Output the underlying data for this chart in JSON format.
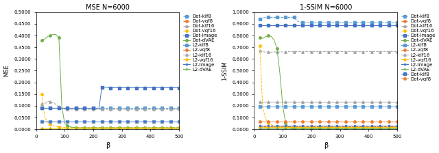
{
  "title1": "MSE N=6000",
  "title2": "1-SSIM N=6000",
  "xlabel": "β",
  "ylabel1": "MSE",
  "ylabel2": "1-SSIM",
  "beta": [
    20,
    30,
    40,
    50,
    60,
    70,
    80,
    90,
    100,
    110,
    120,
    130,
    140,
    150,
    160,
    170,
    180,
    190,
    200,
    210,
    220,
    230,
    240,
    250,
    260,
    270,
    280,
    290,
    300,
    310,
    320,
    330,
    340,
    350,
    360,
    370,
    380,
    390,
    400,
    410,
    420,
    430,
    440,
    450,
    460,
    470,
    480,
    490,
    500
  ],
  "mse": {
    "Dot-klf8": [
      0.09,
      0.09,
      0.09,
      0.09,
      0.09,
      0.09,
      0.09,
      0.09,
      0.09,
      0.09,
      0.09,
      0.09,
      0.09,
      0.09,
      0.09,
      0.09,
      0.09,
      0.09,
      0.09,
      0.09,
      0.09,
      0.09,
      0.09,
      0.09,
      0.09,
      0.09,
      0.09,
      0.09,
      0.09,
      0.09,
      0.09,
      0.09,
      0.09,
      0.09,
      0.09,
      0.09,
      0.09,
      0.09,
      0.09,
      0.09,
      0.09,
      0.09,
      0.09,
      0.09,
      0.09,
      0.09,
      0.09,
      0.09,
      0.09
    ],
    "Dot-vqf8": [
      0.0005,
      0.0005,
      0.0005,
      0.0005,
      0.0005,
      0.0005,
      0.0005,
      0.0005,
      0.0005,
      0.0005,
      0.0005,
      0.0005,
      0.0005,
      0.0005,
      0.0005,
      0.0005,
      0.0005,
      0.0005,
      0.0005,
      0.0005,
      0.0005,
      0.0005,
      0.0005,
      0.0005,
      0.0005,
      0.0005,
      0.0005,
      0.0005,
      0.0005,
      0.0005,
      0.0005,
      0.0005,
      0.0005,
      0.0005,
      0.0005,
      0.0005,
      0.0005,
      0.0005,
      0.0005,
      0.0005,
      0.0005,
      0.0005,
      0.0005,
      0.0005,
      0.0005,
      0.0005,
      0.0005,
      0.0005,
      0.0005
    ],
    "Dot-klf16": [
      0.11,
      0.108,
      0.12,
      0.118,
      0.113,
      0.106,
      0.097,
      0.09,
      0.086,
      0.085,
      0.085,
      0.085,
      0.085,
      0.085,
      0.085,
      0.085,
      0.085,
      0.085,
      0.085,
      0.085,
      0.085,
      0.085,
      0.085,
      0.085,
      0.085,
      0.085,
      0.085,
      0.085,
      0.085,
      0.085,
      0.085,
      0.085,
      0.085,
      0.085,
      0.085,
      0.085,
      0.085,
      0.085,
      0.085,
      0.085,
      0.085,
      0.085,
      0.085,
      0.085,
      0.085,
      0.085,
      0.085,
      0.085,
      0.085
    ],
    "Dot-vqf16": [
      0.15,
      0.055,
      0.03,
      0.02,
      0.015,
      0.012,
      0.01,
      0.009,
      0.008,
      0.008,
      0.008,
      0.008,
      0.008,
      0.008,
      0.008,
      0.008,
      0.008,
      0.008,
      0.008,
      0.008,
      0.008,
      0.008,
      0.008,
      0.008,
      0.008,
      0.008,
      0.008,
      0.008,
      0.008,
      0.008,
      0.008,
      0.008,
      0.008,
      0.008,
      0.008,
      0.008,
      0.008,
      0.008,
      0.008,
      0.008,
      0.008,
      0.008,
      0.008,
      0.008,
      0.008,
      0.008,
      0.008,
      0.008,
      0.008
    ],
    "Dot-Image": [
      0.09,
      0.09,
      0.09,
      0.09,
      0.09,
      0.09,
      0.09,
      0.09,
      0.09,
      0.09,
      0.09,
      0.09,
      0.09,
      0.09,
      0.09,
      0.09,
      0.09,
      0.09,
      0.09,
      0.09,
      0.09,
      0.18,
      0.18,
      0.178,
      0.177,
      0.177,
      0.177,
      0.177,
      0.177,
      0.177,
      0.177,
      0.177,
      0.177,
      0.177,
      0.177,
      0.177,
      0.177,
      0.177,
      0.177,
      0.177,
      0.177,
      0.177,
      0.177,
      0.177,
      0.177,
      0.177,
      0.177,
      0.177,
      0.177
    ],
    "Dot-dVAE": [
      0.38,
      0.385,
      0.395,
      0.4,
      0.405,
      0.404,
      0.39,
      0.1,
      0.025,
      0.015,
      0.01,
      0.008,
      0.007,
      0.006,
      0.006,
      0.006,
      0.006,
      0.006,
      0.006,
      0.006,
      0.006,
      0.006,
      0.006,
      0.006,
      0.006,
      0.006,
      0.006,
      0.006,
      0.006,
      0.006,
      0.006,
      0.006,
      0.006,
      0.006,
      0.006,
      0.006,
      0.006,
      0.006,
      0.006,
      0.006,
      0.006,
      0.006,
      0.006,
      0.006,
      0.006,
      0.006,
      0.006,
      0.006,
      0.006
    ],
    "L2-klf8": [
      0.033,
      0.033,
      0.033,
      0.033,
      0.033,
      0.033,
      0.033,
      0.033,
      0.033,
      0.033,
      0.033,
      0.033,
      0.033,
      0.033,
      0.033,
      0.033,
      0.033,
      0.033,
      0.033,
      0.033,
      0.033,
      0.033,
      0.033,
      0.033,
      0.033,
      0.033,
      0.033,
      0.033,
      0.033,
      0.033,
      0.033,
      0.033,
      0.033,
      0.033,
      0.033,
      0.033,
      0.033,
      0.033,
      0.033,
      0.033,
      0.033,
      0.033,
      0.033,
      0.033,
      0.033,
      0.033,
      0.033,
      0.033,
      0.033
    ],
    "L2-vqf8": [
      0.0005,
      0.0005,
      0.0005,
      0.0005,
      0.0005,
      0.0005,
      0.0005,
      0.0005,
      0.0005,
      0.0005,
      0.0005,
      0.0005,
      0.0005,
      0.0005,
      0.0005,
      0.0005,
      0.0005,
      0.0005,
      0.0005,
      0.0005,
      0.0005,
      0.0005,
      0.0005,
      0.0005,
      0.0005,
      0.0005,
      0.0005,
      0.0005,
      0.0005,
      0.0005,
      0.0005,
      0.0005,
      0.0005,
      0.0005,
      0.0005,
      0.0005,
      0.0005,
      0.0005,
      0.0005,
      0.0005,
      0.0005,
      0.0005,
      0.0005,
      0.0005,
      0.0005,
      0.0005,
      0.0005,
      0.0005,
      0.0005
    ],
    "L2-klf16": [
      0.033,
      0.033,
      0.033,
      0.033,
      0.033,
      0.033,
      0.033,
      0.033,
      0.033,
      0.033,
      0.033,
      0.033,
      0.033,
      0.033,
      0.033,
      0.033,
      0.033,
      0.033,
      0.033,
      0.033,
      0.033,
      0.033,
      0.033,
      0.033,
      0.033,
      0.033,
      0.033,
      0.033,
      0.033,
      0.033,
      0.033,
      0.033,
      0.033,
      0.033,
      0.033,
      0.033,
      0.033,
      0.033,
      0.033,
      0.033,
      0.033,
      0.033,
      0.033,
      0.033,
      0.033,
      0.033,
      0.033,
      0.033,
      0.033
    ],
    "L2-vqf16": [
      0.004,
      0.004,
      0.004,
      0.004,
      0.004,
      0.004,
      0.004,
      0.004,
      0.004,
      0.004,
      0.004,
      0.004,
      0.004,
      0.004,
      0.004,
      0.004,
      0.004,
      0.004,
      0.004,
      0.004,
      0.004,
      0.004,
      0.004,
      0.004,
      0.004,
      0.004,
      0.004,
      0.004,
      0.004,
      0.004,
      0.004,
      0.004,
      0.004,
      0.004,
      0.004,
      0.004,
      0.004,
      0.004,
      0.004,
      0.004,
      0.004,
      0.004,
      0.004,
      0.004,
      0.004,
      0.004,
      0.004,
      0.004,
      0.004
    ],
    "L2-Image": [
      0.033,
      0.033,
      0.033,
      0.033,
      0.033,
      0.033,
      0.033,
      0.033,
      0.033,
      0.033,
      0.033,
      0.033,
      0.033,
      0.033,
      0.033,
      0.033,
      0.033,
      0.033,
      0.033,
      0.033,
      0.033,
      0.033,
      0.033,
      0.033,
      0.033,
      0.033,
      0.033,
      0.033,
      0.033,
      0.033,
      0.033,
      0.033,
      0.033,
      0.033,
      0.033,
      0.033,
      0.033,
      0.033,
      0.033,
      0.033,
      0.033,
      0.033,
      0.033,
      0.033,
      0.033,
      0.033,
      0.033,
      0.033,
      0.033
    ],
    "L2-dVAE": [
      0.002,
      0.002,
      0.002,
      0.002,
      0.002,
      0.002,
      0.002,
      0.002,
      0.002,
      0.002,
      0.002,
      0.002,
      0.002,
      0.002,
      0.002,
      0.002,
      0.002,
      0.002,
      0.002,
      0.002,
      0.002,
      0.002,
      0.002,
      0.002,
      0.002,
      0.002,
      0.002,
      0.002,
      0.002,
      0.002,
      0.002,
      0.002,
      0.002,
      0.002,
      0.002,
      0.002,
      0.002,
      0.002,
      0.002,
      0.002,
      0.002,
      0.002,
      0.002,
      0.002,
      0.002,
      0.002,
      0.002,
      0.002,
      0.002
    ]
  },
  "ssim": {
    "Dot-klf8": [
      0.94,
      0.95,
      0.955,
      0.955,
      0.955,
      0.955,
      0.955,
      0.955,
      0.955,
      0.955,
      0.955,
      0.955,
      0.955,
      0.925,
      0.915,
      0.91,
      0.91,
      0.91,
      0.91,
      0.91,
      0.91,
      0.91,
      0.91,
      0.91,
      0.91,
      0.91,
      0.91,
      0.91,
      0.91,
      0.91,
      0.91,
      0.91,
      0.91,
      0.91,
      0.91,
      0.91,
      0.91,
      0.91,
      0.91,
      0.91,
      0.91,
      0.91,
      0.91,
      0.91,
      0.91,
      0.91,
      0.91,
      0.91,
      0.91
    ],
    "Dot-vqf8": [
      0.022,
      0.022,
      0.022,
      0.022,
      0.022,
      0.022,
      0.022,
      0.022,
      0.022,
      0.022,
      0.022,
      0.022,
      0.022,
      0.022,
      0.022,
      0.022,
      0.022,
      0.022,
      0.022,
      0.022,
      0.022,
      0.022,
      0.022,
      0.022,
      0.022,
      0.022,
      0.022,
      0.022,
      0.022,
      0.022,
      0.022,
      0.022,
      0.022,
      0.022,
      0.022,
      0.022,
      0.022,
      0.022,
      0.022,
      0.022,
      0.022,
      0.022,
      0.022,
      0.022,
      0.022,
      0.022,
      0.022,
      0.022,
      0.022
    ],
    "Dot-klf16": [
      0.672,
      0.662,
      0.66,
      0.66,
      0.658,
      0.66,
      0.66,
      0.66,
      0.66,
      0.66,
      0.663,
      0.663,
      0.663,
      0.663,
      0.663,
      0.663,
      0.663,
      0.663,
      0.663,
      0.663,
      0.663,
      0.663,
      0.663,
      0.663,
      0.663,
      0.663,
      0.663,
      0.663,
      0.663,
      0.663,
      0.663,
      0.663,
      0.663,
      0.663,
      0.663,
      0.663,
      0.663,
      0.663,
      0.663,
      0.663,
      0.663,
      0.663,
      0.663,
      0.663,
      0.663,
      0.663,
      0.663,
      0.663,
      0.663
    ],
    "Dot-vqf16": [
      0.71,
      0.18,
      0.09,
      0.055,
      0.038,
      0.028,
      0.022,
      0.018,
      0.016,
      0.016,
      0.016,
      0.016,
      0.016,
      0.016,
      0.016,
      0.016,
      0.016,
      0.016,
      0.016,
      0.016,
      0.016,
      0.016,
      0.016,
      0.016,
      0.016,
      0.016,
      0.016,
      0.016,
      0.016,
      0.016,
      0.016,
      0.016,
      0.016,
      0.016,
      0.016,
      0.016,
      0.016,
      0.016,
      0.016,
      0.016,
      0.016,
      0.016,
      0.016,
      0.016,
      0.016,
      0.016,
      0.016,
      0.016,
      0.016
    ],
    "Dot-Image": [
      0.888,
      0.888,
      0.888,
      0.888,
      0.888,
      0.888,
      0.888,
      0.888,
      0.888,
      0.888,
      0.888,
      0.888,
      0.888,
      0.888,
      0.888,
      0.888,
      0.888,
      0.888,
      0.888,
      0.888,
      0.888,
      0.888,
      0.888,
      0.888,
      0.888,
      0.888,
      0.888,
      0.888,
      0.888,
      0.888,
      0.888,
      0.888,
      0.888,
      0.888,
      0.888,
      0.888,
      0.888,
      0.888,
      0.888,
      0.888,
      0.888,
      0.888,
      0.888,
      0.888,
      0.888,
      0.888,
      0.888,
      0.888,
      0.888
    ],
    "Dot-dVAE": [
      0.785,
      0.775,
      0.79,
      0.8,
      0.792,
      0.76,
      0.69,
      0.48,
      0.2,
      0.055,
      0.02,
      0.01,
      0.008,
      0.007,
      0.007,
      0.007,
      0.007,
      0.007,
      0.007,
      0.007,
      0.007,
      0.007,
      0.007,
      0.007,
      0.007,
      0.007,
      0.007,
      0.007,
      0.007,
      0.007,
      0.007,
      0.007,
      0.007,
      0.007,
      0.007,
      0.007,
      0.007,
      0.007,
      0.007,
      0.007,
      0.007,
      0.007,
      0.007,
      0.007,
      0.007,
      0.007,
      0.007,
      0.007,
      0.007
    ],
    "L2-klf8": [
      0.192,
      0.192,
      0.192,
      0.192,
      0.192,
      0.192,
      0.192,
      0.192,
      0.192,
      0.192,
      0.192,
      0.192,
      0.192,
      0.192,
      0.192,
      0.192,
      0.192,
      0.192,
      0.192,
      0.192,
      0.192,
      0.192,
      0.192,
      0.192,
      0.192,
      0.192,
      0.192,
      0.192,
      0.192,
      0.192,
      0.192,
      0.192,
      0.192,
      0.192,
      0.192,
      0.192,
      0.192,
      0.192,
      0.192,
      0.192,
      0.192,
      0.192,
      0.192,
      0.192,
      0.192,
      0.192,
      0.192,
      0.192,
      0.192
    ],
    "L2-vqf8": [
      0.068,
      0.068,
      0.068,
      0.068,
      0.068,
      0.068,
      0.068,
      0.068,
      0.068,
      0.068,
      0.068,
      0.068,
      0.068,
      0.068,
      0.068,
      0.068,
      0.068,
      0.068,
      0.068,
      0.068,
      0.068,
      0.068,
      0.068,
      0.068,
      0.068,
      0.068,
      0.068,
      0.068,
      0.068,
      0.068,
      0.068,
      0.068,
      0.068,
      0.068,
      0.068,
      0.068,
      0.068,
      0.068,
      0.068,
      0.068,
      0.068,
      0.068,
      0.068,
      0.068,
      0.068,
      0.068,
      0.068,
      0.068,
      0.068
    ],
    "L2-klf16": [
      0.233,
      0.233,
      0.233,
      0.233,
      0.233,
      0.233,
      0.233,
      0.233,
      0.233,
      0.233,
      0.233,
      0.233,
      0.233,
      0.233,
      0.233,
      0.233,
      0.233,
      0.233,
      0.233,
      0.233,
      0.233,
      0.233,
      0.233,
      0.233,
      0.233,
      0.233,
      0.233,
      0.233,
      0.233,
      0.233,
      0.233,
      0.233,
      0.233,
      0.233,
      0.233,
      0.233,
      0.233,
      0.233,
      0.233,
      0.233,
      0.233,
      0.233,
      0.233,
      0.233,
      0.233,
      0.233,
      0.233,
      0.233,
      0.233
    ],
    "L2-vqf16": [
      0.018,
      0.018,
      0.018,
      0.018,
      0.018,
      0.018,
      0.018,
      0.018,
      0.018,
      0.018,
      0.018,
      0.018,
      0.018,
      0.018,
      0.018,
      0.018,
      0.018,
      0.018,
      0.018,
      0.018,
      0.018,
      0.018,
      0.018,
      0.018,
      0.018,
      0.018,
      0.018,
      0.018,
      0.018,
      0.018,
      0.018,
      0.018,
      0.018,
      0.018,
      0.018,
      0.018,
      0.018,
      0.018,
      0.018,
      0.018,
      0.018,
      0.018,
      0.018,
      0.018,
      0.018,
      0.018,
      0.018,
      0.018,
      0.018
    ],
    "L2-Image": [
      0.028,
      0.028,
      0.028,
      0.028,
      0.028,
      0.028,
      0.028,
      0.028,
      0.028,
      0.028,
      0.028,
      0.028,
      0.028,
      0.028,
      0.028,
      0.028,
      0.028,
      0.028,
      0.028,
      0.028,
      0.028,
      0.028,
      0.028,
      0.028,
      0.028,
      0.028,
      0.028,
      0.028,
      0.028,
      0.028,
      0.028,
      0.028,
      0.028,
      0.028,
      0.028,
      0.028,
      0.028,
      0.028,
      0.028,
      0.028,
      0.028,
      0.028,
      0.028,
      0.028,
      0.028,
      0.028,
      0.028,
      0.028,
      0.028
    ],
    "L2-dVAE": [
      0.008,
      0.008,
      0.008,
      0.008,
      0.008,
      0.008,
      0.008,
      0.008,
      0.008,
      0.008,
      0.008,
      0.008,
      0.008,
      0.008,
      0.008,
      0.008,
      0.008,
      0.008,
      0.008,
      0.008,
      0.008,
      0.008,
      0.008,
      0.008,
      0.008,
      0.008,
      0.008,
      0.008,
      0.008,
      0.008,
      0.008,
      0.008,
      0.008,
      0.008,
      0.008,
      0.008,
      0.008,
      0.008,
      0.008,
      0.008,
      0.008,
      0.008,
      0.008,
      0.008,
      0.008,
      0.008,
      0.008,
      0.008,
      0.008
    ]
  },
  "series_styles": {
    "Dot-klf8": {
      "color": "#5B9BD5",
      "marker": "s",
      "linestyle": "--",
      "ms": 2.5,
      "lw": 0.7
    },
    "Dot-vqf8": {
      "color": "#ED7D31",
      "marker": "o",
      "linestyle": "--",
      "ms": 2.5,
      "lw": 0.7
    },
    "Dot-klf16": {
      "color": "#A5A5A5",
      "marker": "^",
      "linestyle": "--",
      "ms": 2.5,
      "lw": 0.7
    },
    "Dot-vqf16": {
      "color": "#FFC000",
      "marker": "o",
      "linestyle": "--",
      "ms": 2.5,
      "lw": 0.7
    },
    "Dot-Image": {
      "color": "#4472C4",
      "marker": "s",
      "linestyle": "-",
      "ms": 2.5,
      "lw": 0.7
    },
    "Dot-dVAE": {
      "color": "#70AD47",
      "marker": "o",
      "linestyle": "-",
      "ms": 2.5,
      "lw": 0.7
    },
    "L2-klf8": {
      "color": "#5B9BD5",
      "marker": "s",
      "linestyle": "-",
      "ms": 2.5,
      "lw": 0.7
    },
    "L2-vqf8": {
      "color": "#ED7D31",
      "marker": "o",
      "linestyle": "-",
      "ms": 2.5,
      "lw": 0.7
    },
    "L2-klf16": {
      "color": "#A5A5A5",
      "marker": "^",
      "linestyle": "-",
      "ms": 2.5,
      "lw": 0.7
    },
    "L2-vqf16": {
      "color": "#FFC000",
      "marker": "*",
      "linestyle": "-",
      "ms": 3.0,
      "lw": 0.7
    },
    "L2-Image": {
      "color": "#4472C4",
      "marker": ".",
      "linestyle": "-",
      "ms": 3.0,
      "lw": 0.7
    },
    "L2-dVAE": {
      "color": "#70AD47",
      "marker": "+",
      "linestyle": "-",
      "ms": 3.0,
      "lw": 0.7
    }
  },
  "legend_order": [
    "Dot-klf8",
    "Dot-vqf8",
    "Dot-klf16",
    "Dot-vqf16",
    "Dot-Image",
    "Dot-dVAE",
    "L2-klf8",
    "L2-vqf8",
    "L2-klf16",
    "L2-vqf16",
    "L2-Image",
    "L2-dVAE"
  ],
  "ylim_mse": [
    0.0,
    0.5
  ],
  "ylim_ssim": [
    0.0,
    1.0
  ],
  "yticks_mse": [
    0.0,
    0.05,
    0.1,
    0.15,
    0.2,
    0.25,
    0.3,
    0.35,
    0.4,
    0.45,
    0.5
  ],
  "yticks_ssim": [
    0.0,
    0.1,
    0.2,
    0.3,
    0.4,
    0.5,
    0.6,
    0.7,
    0.8,
    0.9,
    1.0
  ],
  "xticks": [
    0,
    100,
    200,
    300,
    400,
    500
  ],
  "bg_color": "#FFFFFF",
  "font_size": 6,
  "extra_legend2": [
    {
      "label": "Dot-klf8",
      "color": "#4472C4",
      "marker": "s",
      "linestyle": "-"
    },
    {
      "label": "Dot-vqf8",
      "color": "#ED7D31",
      "marker": "o",
      "linestyle": "-"
    }
  ]
}
